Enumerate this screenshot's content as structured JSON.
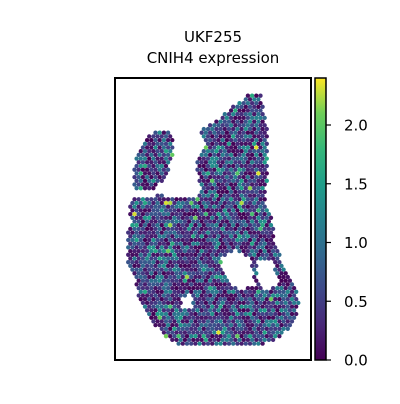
{
  "chart_data": {
    "type": "scatter",
    "title": "UKF255",
    "subtitle": "CNIH4 expression",
    "xlabel": "",
    "ylabel": "",
    "colorbar": {
      "colormap": "viridis",
      "min": 0.0,
      "max": 2.4,
      "ticks": [
        0.0,
        0.5,
        1.0,
        1.5,
        2.0
      ],
      "tick_labels": [
        "0.0",
        "0.5",
        "1.0",
        "1.5",
        "2.0"
      ]
    },
    "grid": false,
    "axes_ticks_visible": false,
    "spots": "hexagonal spatial spots; ~1200 spots, values mostly 0.0–1.0 (dark purple to blue), scattered spots 1.2–1.6 (teal), a few up to 2.3 (yellow-green)"
  }
}
